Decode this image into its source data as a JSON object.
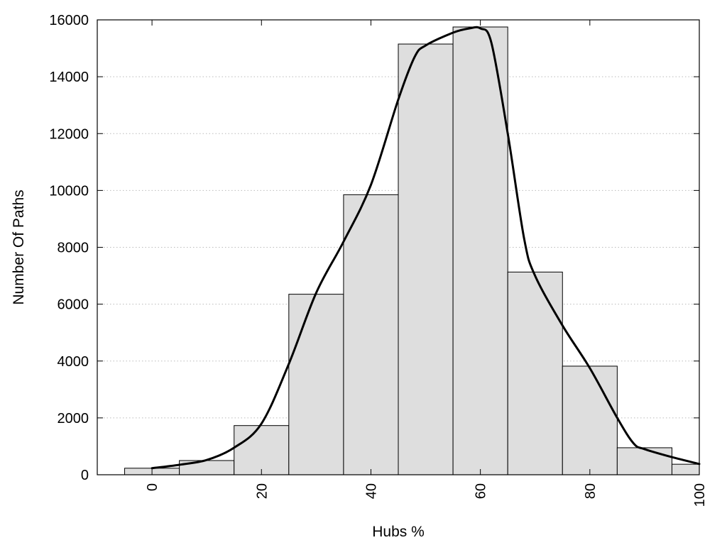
{
  "chart_data": {
    "type": "bar",
    "title": "",
    "xlabel": "Hubs %",
    "ylabel": "Number Of Paths",
    "xlim": [
      -10,
      100
    ],
    "ylim": [
      0,
      16000
    ],
    "x_ticks": [
      "0",
      "20",
      "40",
      "60",
      "80",
      "100"
    ],
    "x_tick_values": [
      0,
      20,
      40,
      60,
      80,
      100
    ],
    "y_ticks": [
      "0",
      "2000",
      "4000",
      "6000",
      "8000",
      "10000",
      "12000",
      "14000",
      "16000"
    ],
    "y_tick_values": [
      0,
      2000,
      4000,
      6000,
      8000,
      10000,
      12000,
      14000,
      16000
    ],
    "grid": "horizontal-dotted",
    "bar_color": "#dedede",
    "bin_width": 10,
    "bars": [
      {
        "x": 0,
        "value": 230
      },
      {
        "x": 10,
        "value": 500
      },
      {
        "x": 20,
        "value": 1730
      },
      {
        "x": 30,
        "value": 6350
      },
      {
        "x": 40,
        "value": 9850
      },
      {
        "x": 50,
        "value": 15150
      },
      {
        "x": 60,
        "value": 15750
      },
      {
        "x": 70,
        "value": 7130
      },
      {
        "x": 80,
        "value": 3820
      },
      {
        "x": 90,
        "value": 950
      },
      {
        "x": 100,
        "value": 370
      }
    ],
    "curve": {
      "x": [
        0,
        5,
        10,
        15,
        20,
        25,
        30,
        35,
        40,
        45,
        48,
        50,
        55,
        58,
        60,
        62,
        65,
        68,
        70,
        75,
        80,
        85,
        88,
        90,
        95,
        100
      ],
      "y": [
        230,
        350,
        520,
        950,
        1800,
        3900,
        6400,
        8200,
        10200,
        13200,
        14700,
        15100,
        15550,
        15700,
        15700,
        15200,
        12000,
        8300,
        7000,
        5250,
        3750,
        2000,
        1100,
        900,
        620,
        380
      ]
    }
  }
}
